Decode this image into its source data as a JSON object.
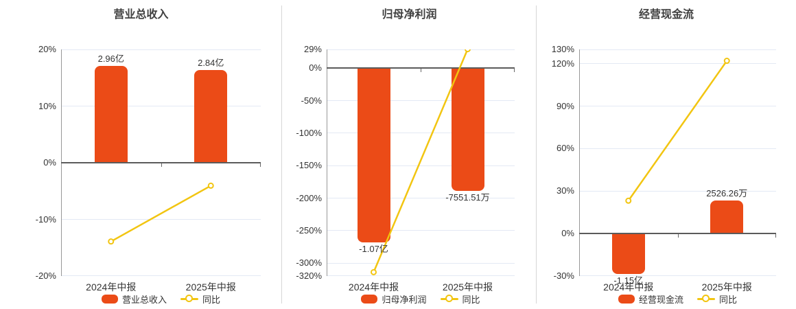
{
  "page": {
    "background": "#ffffff",
    "description_labels": {
      "period_1": "2024年中报",
      "period_2": "2025年中报"
    }
  },
  "colors": {
    "bar": "#eb4b17",
    "line": "#f2c511",
    "grid": "#e3e9f4",
    "zero_line": "#5b5b5b",
    "axis_line": "#979797",
    "tick_mark": "#666666",
    "text": "#333333",
    "title": "#404040",
    "divider": "#d6d6d6",
    "marker_fill": "#ffffff"
  },
  "chart_data": [
    {
      "type": "bar",
      "title": "营业总收入",
      "categories": [
        "2024年中报",
        "2025年中报"
      ],
      "legend": [
        "营业总收入",
        "同比"
      ],
      "legend_position": "bottom",
      "grid": true,
      "ylim": [
        -20,
        20
      ],
      "yticks": [
        20,
        10,
        0,
        -10,
        -20
      ],
      "ytick_labels": [
        "20%",
        "10%",
        "0%",
        "-10%",
        "-20%"
      ],
      "series": [
        {
          "name": "营业总收入",
          "type": "bar",
          "value_labels": [
            "2.96亿",
            "2.84亿"
          ],
          "display_values_on_pct_axis": [
            17.1,
            16.4
          ]
        },
        {
          "name": "同比",
          "type": "line",
          "values_pct": [
            -13.9,
            -4.05
          ]
        }
      ]
    },
    {
      "type": "bar",
      "title": "归母净利润",
      "categories": [
        "2024年中报",
        "2025年中报"
      ],
      "legend": [
        "归母净利润",
        "同比"
      ],
      "legend_position": "bottom",
      "grid": true,
      "ylim": [
        -320,
        29
      ],
      "yticks": [
        29,
        0,
        -50,
        -100,
        -150,
        -200,
        -250,
        -300,
        -320
      ],
      "ytick_labels": [
        "29%",
        "0%",
        "-50%",
        "-100%",
        "-150%",
        "-200%",
        "-250%",
        "-300%",
        "-320%"
      ],
      "series": [
        {
          "name": "归母净利润",
          "type": "bar",
          "value_labels": [
            "-1.07亿",
            "-7551.51万"
          ],
          "display_values_on_pct_axis": [
            -268,
            -189
          ]
        },
        {
          "name": "同比",
          "type": "line",
          "values_pct": [
            -314,
            29.43
          ]
        }
      ]
    },
    {
      "type": "bar",
      "title": "经营现金流",
      "categories": [
        "2024年中报",
        "2025年中报"
      ],
      "legend": [
        "经营现金流",
        "同比"
      ],
      "legend_position": "bottom",
      "grid": true,
      "ylim": [
        -30,
        130
      ],
      "yticks": [
        130,
        120,
        90,
        60,
        30,
        0,
        -30
      ],
      "ytick_labels": [
        "130%",
        "120%",
        "90%",
        "60%",
        "30%",
        "0%",
        "-30%"
      ],
      "series": [
        {
          "name": "经营现金流",
          "type": "bar",
          "value_labels": [
            "-1.15亿",
            "2526.26万"
          ],
          "display_values_on_pct_axis": [
            -28.5,
            23.3
          ]
        },
        {
          "name": "同比",
          "type": "line",
          "values_pct": [
            23.2,
            121.97
          ]
        }
      ]
    }
  ]
}
